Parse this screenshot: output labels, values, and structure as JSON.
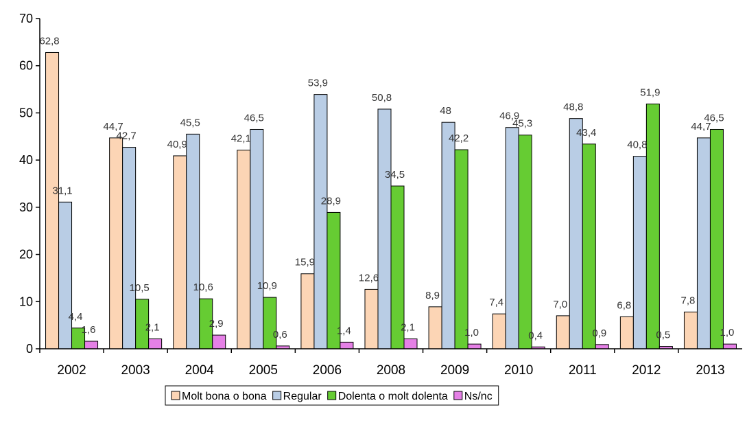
{
  "chart_data": {
    "type": "bar",
    "categories": [
      "2002",
      "2003",
      "2004",
      "2005",
      "2006",
      "2008",
      "2009",
      "2010",
      "2011",
      "2012",
      "2013"
    ],
    "series": [
      {
        "name": "Molt bona o bona",
        "color": "#fcd5b5",
        "values": [
          62.8,
          44.7,
          40.9,
          42.1,
          15.9,
          12.6,
          8.9,
          7.4,
          7.0,
          6.8,
          7.8
        ],
        "labels": [
          "62,8",
          "44,7",
          "40,9",
          "42,1",
          "15,9",
          "12,6",
          "8,9",
          "7,4",
          "7,0",
          "6,8",
          "7,8"
        ]
      },
      {
        "name": "Regular",
        "color": "#b9cde5",
        "values": [
          31.1,
          42.7,
          45.5,
          46.5,
          53.9,
          50.8,
          48,
          46.9,
          48.8,
          40.8,
          44.7
        ],
        "labels": [
          "31,1",
          "42,7",
          "45,5",
          "46,5",
          "53,9",
          "50,8",
          "48",
          "46,9",
          "48,8",
          "40,8",
          "44,7"
        ]
      },
      {
        "name": "Dolenta o molt dolenta",
        "color": "#66cc33",
        "values": [
          4.4,
          10.5,
          10.6,
          10.9,
          28.9,
          34.5,
          42.2,
          45.3,
          43.4,
          51.9,
          46.5
        ],
        "labels": [
          "4,4",
          "10,5",
          "10,6",
          "10,9",
          "28,9",
          "34,5",
          "42,2",
          "45,3",
          "43,4",
          "51,9",
          "46,5"
        ]
      },
      {
        "name": "Ns/nc",
        "color": "#e580e6",
        "values": [
          1.6,
          2.1,
          2.9,
          0.6,
          1.4,
          2.1,
          1.0,
          0.4,
          0.9,
          0.5,
          1.0
        ],
        "labels": [
          "1,6",
          "2,1",
          "2,9",
          "0,6",
          "1,4",
          "2,1",
          "1,0",
          "0,4",
          "0,9",
          "0,5",
          "1,0"
        ]
      }
    ],
    "yticks": [
      "0",
      "10",
      "20",
      "30",
      "40",
      "50",
      "60",
      "70"
    ],
    "ylim": [
      0,
      70
    ],
    "grid": false,
    "legend_position": "bottom"
  }
}
